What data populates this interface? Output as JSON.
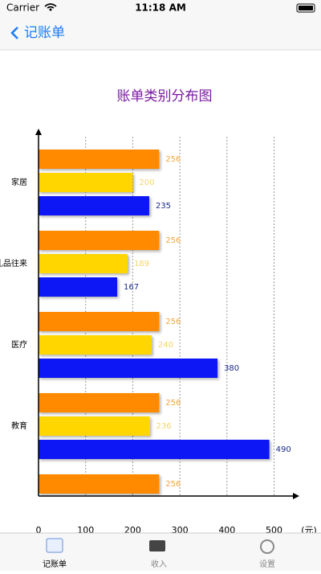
{
  "status_bar": {
    "carrier": "Carrier",
    "time": "11:18 AM"
  },
  "nav": {
    "title": "记账单"
  },
  "chart_data": {
    "type": "bar",
    "orientation": "horizontal",
    "title": "账单类别分布图",
    "categories": [
      "家居",
      "礼品往来",
      "医疗",
      "教育",
      null
    ],
    "series": [
      {
        "color": "#ff8a00",
        "label_color": "#f0a640",
        "values": [
          256,
          256,
          256,
          256,
          256
        ]
      },
      {
        "color": "#ffd600",
        "label_color": "#f5d66a",
        "values": [
          200,
          189,
          240,
          236,
          null
        ]
      },
      {
        "color": "#0a14f5",
        "label_color": "#1b2a8c",
        "values": [
          235,
          167,
          380,
          490,
          null
        ]
      }
    ],
    "xlim": [
      0,
      540
    ],
    "xticks": [
      0,
      100,
      200,
      300,
      400,
      500
    ],
    "x_unit": "(元)",
    "grid": true
  },
  "tab_bar": {
    "items": [
      "记账单",
      "收入",
      "设置"
    ]
  }
}
